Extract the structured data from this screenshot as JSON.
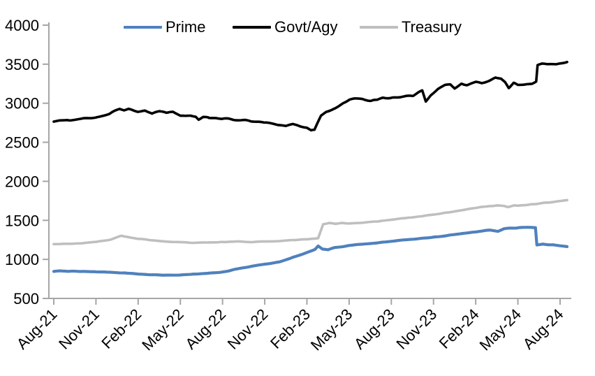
{
  "chart_data": {
    "type": "line",
    "title": "",
    "grid": false,
    "legend_position": "top",
    "x_axis": {
      "unit": "months since Aug-2021",
      "tick_interval_months": 3,
      "tick_labels": [
        "Aug-21",
        "Nov-21",
        "Feb-22",
        "May-22",
        "Aug-22",
        "Nov-22",
        "Feb-23",
        "May-23",
        "Aug-23",
        "Nov-23",
        "Feb-24",
        "May-24",
        "Aug-24"
      ],
      "index_max": 36,
      "data_end_index": 36.5
    },
    "y_axis": {
      "min": 500,
      "max": 4000,
      "step": 500,
      "tick_values": [
        4000,
        3500,
        3000,
        2500,
        2000,
        1500,
        1000,
        500
      ],
      "tick_labels": [
        "4000",
        "3500",
        "3000",
        "2500",
        "2000",
        "1500",
        "1000",
        "500"
      ]
    },
    "series": [
      {
        "name": "Prime",
        "color": "#4f81bd",
        "stroke_width": 4.2,
        "jitter": 5,
        "seed": 7,
        "points": [
          [
            0,
            846
          ],
          [
            0.5,
            852
          ],
          [
            1,
            849
          ],
          [
            2,
            844
          ],
          [
            3,
            841
          ],
          [
            4,
            836
          ],
          [
            5,
            827
          ],
          [
            6,
            813
          ],
          [
            7,
            802
          ],
          [
            8,
            798
          ],
          [
            9,
            802
          ],
          [
            10,
            810
          ],
          [
            11,
            821
          ],
          [
            12,
            837
          ],
          [
            13,
            877
          ],
          [
            14,
            910
          ],
          [
            15,
            940
          ],
          [
            16,
            964
          ],
          [
            17,
            1025
          ],
          [
            18,
            1085
          ],
          [
            18.6,
            1130
          ],
          [
            18.8,
            1168
          ],
          [
            19.1,
            1132
          ],
          [
            19.5,
            1122
          ],
          [
            20,
            1152
          ],
          [
            21,
            1180
          ],
          [
            22,
            1196
          ],
          [
            23,
            1212
          ],
          [
            24,
            1232
          ],
          [
            25,
            1252
          ],
          [
            26,
            1266
          ],
          [
            27,
            1284
          ],
          [
            28,
            1306
          ],
          [
            29,
            1330
          ],
          [
            30,
            1354
          ],
          [
            31,
            1376
          ],
          [
            31.6,
            1360
          ],
          [
            32,
            1392
          ],
          [
            33,
            1406
          ],
          [
            34,
            1410
          ],
          [
            34.25,
            1408
          ],
          [
            34.35,
            1184
          ],
          [
            34.8,
            1194
          ],
          [
            35.5,
            1184
          ],
          [
            36,
            1174
          ],
          [
            36.5,
            1164
          ]
        ]
      },
      {
        "name": "Govt/Agy",
        "color": "#000000",
        "stroke_width": 3.6,
        "jitter": 13,
        "seed": 3,
        "points": [
          [
            0,
            2768
          ],
          [
            1,
            2781
          ],
          [
            2,
            2799
          ],
          [
            3,
            2821
          ],
          [
            4,
            2862
          ],
          [
            4.7,
            2930
          ],
          [
            5,
            2916
          ],
          [
            5.3,
            2932
          ],
          [
            6,
            2890
          ],
          [
            6.5,
            2906
          ],
          [
            7,
            2869
          ],
          [
            7.5,
            2899
          ],
          [
            8,
            2879
          ],
          [
            8.5,
            2893
          ],
          [
            9,
            2839
          ],
          [
            9.7,
            2843
          ],
          [
            10.1,
            2826
          ],
          [
            10.3,
            2793
          ],
          [
            10.6,
            2823
          ],
          [
            11,
            2813
          ],
          [
            12,
            2803
          ],
          [
            13,
            2789
          ],
          [
            14,
            2769
          ],
          [
            15,
            2751
          ],
          [
            16,
            2723
          ],
          [
            16.5,
            2709
          ],
          [
            17,
            2739
          ],
          [
            17.5,
            2701
          ],
          [
            18,
            2694
          ],
          [
            18.3,
            2664
          ],
          [
            18.55,
            2656
          ],
          [
            19,
            2838
          ],
          [
            19.4,
            2884
          ],
          [
            20,
            2938
          ],
          [
            20.6,
            3005
          ],
          [
            21,
            3044
          ],
          [
            21.4,
            3060
          ],
          [
            22,
            3050
          ],
          [
            22.6,
            3034
          ],
          [
            23,
            3040
          ],
          [
            23.4,
            3070
          ],
          [
            24,
            3064
          ],
          [
            25,
            3084
          ],
          [
            25.5,
            3090
          ],
          [
            26,
            3144
          ],
          [
            26.2,
            3160
          ],
          [
            26.45,
            3020
          ],
          [
            26.8,
            3100
          ],
          [
            27.3,
            3178
          ],
          [
            27.8,
            3234
          ],
          [
            28.2,
            3244
          ],
          [
            28.5,
            3188
          ],
          [
            29,
            3254
          ],
          [
            29.4,
            3230
          ],
          [
            30,
            3274
          ],
          [
            30.4,
            3254
          ],
          [
            31,
            3290
          ],
          [
            31.4,
            3324
          ],
          [
            31.8,
            3308
          ],
          [
            32.1,
            3264
          ],
          [
            32.35,
            3200
          ],
          [
            32.7,
            3270
          ],
          [
            33,
            3240
          ],
          [
            33.5,
            3244
          ],
          [
            34,
            3256
          ],
          [
            34.2,
            3270
          ],
          [
            34.3,
            3275
          ],
          [
            34.4,
            3482
          ],
          [
            34.7,
            3500
          ],
          [
            35,
            3492
          ],
          [
            35.3,
            3505
          ],
          [
            35.7,
            3498
          ],
          [
            36,
            3512
          ],
          [
            36.5,
            3528
          ]
        ]
      },
      {
        "name": "Treasury",
        "color": "#bfbfbf",
        "stroke_width": 3.6,
        "jitter": 5,
        "seed": 11,
        "points": [
          [
            0,
            1198
          ],
          [
            1,
            1200
          ],
          [
            2,
            1207
          ],
          [
            3,
            1225
          ],
          [
            4,
            1253
          ],
          [
            4.8,
            1300
          ],
          [
            5.2,
            1290
          ],
          [
            6,
            1263
          ],
          [
            7,
            1244
          ],
          [
            8,
            1229
          ],
          [
            9,
            1221
          ],
          [
            10,
            1214
          ],
          [
            11,
            1218
          ],
          [
            12,
            1223
          ],
          [
            13,
            1229
          ],
          [
            14,
            1222
          ],
          [
            15,
            1228
          ],
          [
            16,
            1235
          ],
          [
            17,
            1246
          ],
          [
            18,
            1258
          ],
          [
            18.8,
            1276
          ],
          [
            19.15,
            1448
          ],
          [
            19.6,
            1465
          ],
          [
            20,
            1455
          ],
          [
            20.5,
            1468
          ],
          [
            21,
            1460
          ],
          [
            22,
            1470
          ],
          [
            23,
            1486
          ],
          [
            24,
            1508
          ],
          [
            25,
            1528
          ],
          [
            26,
            1550
          ],
          [
            27,
            1574
          ],
          [
            28,
            1602
          ],
          [
            29,
            1632
          ],
          [
            30,
            1660
          ],
          [
            31,
            1682
          ],
          [
            31.5,
            1694
          ],
          [
            32,
            1684
          ],
          [
            32.3,
            1667
          ],
          [
            32.7,
            1690
          ],
          [
            33,
            1688
          ],
          [
            34,
            1704
          ],
          [
            35,
            1724
          ],
          [
            36,
            1748
          ],
          [
            36.5,
            1758
          ]
        ]
      }
    ]
  },
  "styles": {
    "axis_color": "#a6a6a6",
    "label_color": "#000000",
    "background": "#ffffff"
  }
}
